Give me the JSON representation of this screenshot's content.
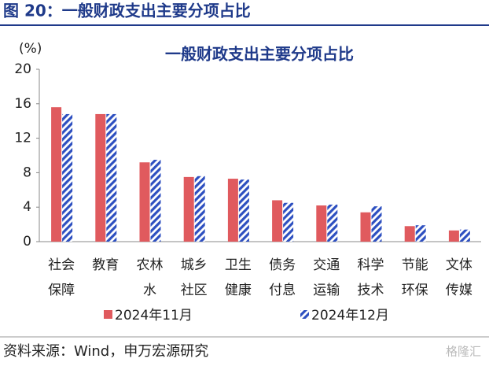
{
  "header": {
    "title": "图 20：一般财政支出主要分项占比"
  },
  "chart_data": {
    "type": "bar",
    "title": "一般财政支出主要分项占比",
    "y_label": "(%)",
    "categories": [
      "社会\n保障",
      "教育",
      "农林\n水",
      "城乡\n社区",
      "卫生\n健康",
      "债务\n付息",
      "交通\n运输",
      "科学\n技术",
      "节能\n环保",
      "文体\n传媒"
    ],
    "series": [
      {
        "name": "2024年11月",
        "color": "#e05a5e",
        "values": [
          15.6,
          14.8,
          9.2,
          7.5,
          7.3,
          4.8,
          4.2,
          3.4,
          1.8,
          1.3
        ]
      },
      {
        "name": "2024年12月",
        "color": "#2d4fc0",
        "hatch": true,
        "values": [
          14.8,
          14.8,
          9.5,
          7.6,
          7.2,
          4.5,
          4.3,
          4.1,
          1.9,
          1.4
        ]
      }
    ],
    "ylim": [
      0,
      20
    ],
    "yticks": [
      0,
      4,
      8,
      12,
      16,
      20
    ],
    "grid": false
  },
  "footer": {
    "source": "资料来源：Wind，申万宏源研究",
    "watermark": "格隆汇"
  }
}
